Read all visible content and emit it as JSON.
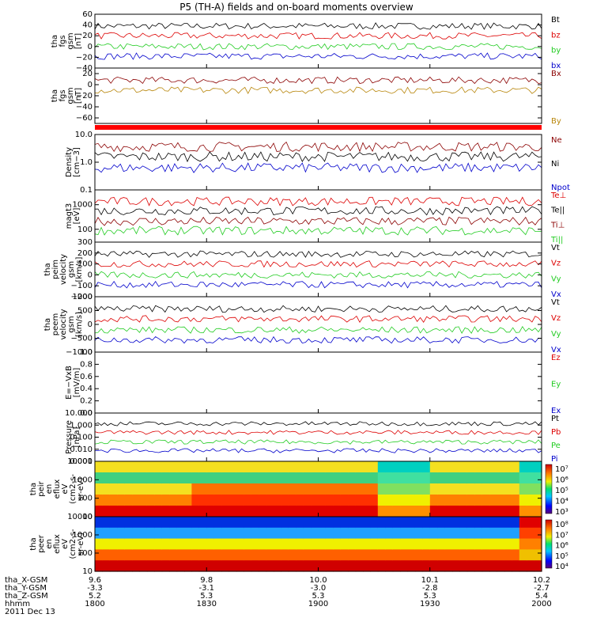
{
  "title": "P5 (TH-A) fields and on-board moments overview",
  "chart_data": {
    "type": "line",
    "title": "P5 (TH-A) fields and on-board moments overview",
    "x_axis": {
      "row_labels": [
        "tha_X-GSM",
        "tha_Y-GSM",
        "tha_Z-GSM",
        "hhmm",
        "2011 Dec 13"
      ],
      "ticks": [
        {
          "hhmm": "1800",
          "x_gsm": "9.6",
          "y_gsm": "-3.3",
          "z_gsm": "5.2"
        },
        {
          "hhmm": "1830",
          "x_gsm": "9.8",
          "y_gsm": "-3.1",
          "z_gsm": "5.3"
        },
        {
          "hhmm": "1900",
          "x_gsm": "10.0",
          "y_gsm": "-3.0",
          "z_gsm": "5.3"
        },
        {
          "hhmm": "1930",
          "x_gsm": "10.1",
          "y_gsm": "-2.8",
          "z_gsm": "5.3"
        },
        {
          "hhmm": "2000",
          "x_gsm": "10.2",
          "y_gsm": "-2.7",
          "z_gsm": "5.4"
        }
      ]
    },
    "panels": [
      {
        "id": "fgs",
        "ylabel": [
          "tha",
          "fgs",
          "gsm",
          "[nT]"
        ],
        "scale": "linear",
        "ylim": [
          -40,
          60
        ],
        "yticks": [
          "60",
          "40",
          "20",
          "0",
          "−20",
          "−40"
        ],
        "legend": [
          {
            "label": "Bt",
            "color": "#000000"
          },
          {
            "label": "bz",
            "color": "#dd0000"
          },
          {
            "label": "by",
            "color": "#22cc22"
          },
          {
            "label": "bx",
            "color": "#0000cc"
          }
        ]
      },
      {
        "id": "fgs_angles",
        "ylabel": [
          "tha",
          "fgs",
          "gsm",
          "[nT]"
        ],
        "scale": "linear",
        "ylim": [
          -70,
          30
        ],
        "yticks": [
          "20",
          "0",
          "−20",
          "−40",
          "−60"
        ],
        "legend": [
          {
            "label": "Bx",
            "color": "#8b0000"
          },
          {
            "label": "By",
            "color": "#b8860b"
          }
        ]
      },
      {
        "id": "density",
        "ylabel": [
          "Density",
          "[cm−3]"
        ],
        "scale": "log",
        "ylim": [
          0.1,
          10
        ],
        "yticks": [
          "10.0",
          "1.0",
          "0.1"
        ],
        "legend": [
          {
            "label": "Ne",
            "color": "#8b0000"
          },
          {
            "label": "Ni",
            "color": "#000000"
          },
          {
            "label": "Npot",
            "color": "#0000cc"
          }
        ]
      },
      {
        "id": "temperature",
        "ylabel": [
          "magt3",
          "[eV]"
        ],
        "scale": "log",
        "ylim": [
          30,
          4000
        ],
        "yticks": [
          "1000",
          "100"
        ],
        "legend": [
          {
            "label": "Te⊥",
            "color": "#dd0000"
          },
          {
            "label": "Te||",
            "color": "#000000"
          },
          {
            "label": "Ti⊥",
            "color": "#8b0000"
          },
          {
            "label": "Ti||",
            "color": "#22cc22"
          }
        ]
      },
      {
        "id": "ion_velocity",
        "ylabel": [
          "tha",
          "peim",
          "velocity",
          "gsm",
          "[km/s]"
        ],
        "scale": "linear",
        "ylim": [
          -200,
          300
        ],
        "yticks": [
          "300",
          "200",
          "100",
          "0",
          "−100",
          "−200"
        ],
        "legend": [
          {
            "label": "Vt",
            "color": "#000000"
          },
          {
            "label": "Vz",
            "color": "#dd0000"
          },
          {
            "label": "Vy",
            "color": "#22cc22"
          },
          {
            "label": "Vx",
            "color": "#0000cc"
          }
        ]
      },
      {
        "id": "electron_velocity",
        "ylabel": [
          "tha",
          "peem",
          "velocity",
          "gsm",
          "[km/s]"
        ],
        "scale": "linear",
        "ylim": [
          -1000,
          1000
        ],
        "yticks": [
          "1000",
          "500",
          "0",
          "−500",
          "−1000"
        ],
        "legend": [
          {
            "label": "Vt",
            "color": "#000000"
          },
          {
            "label": "Vz",
            "color": "#dd0000"
          },
          {
            "label": "Vy",
            "color": "#22cc22"
          },
          {
            "label": "Vx",
            "color": "#0000cc"
          }
        ]
      },
      {
        "id": "efield",
        "ylabel": [
          "E=−VxB",
          "[mV/m]"
        ],
        "scale": "linear",
        "ylim": [
          0,
          1
        ],
        "yticks": [
          "1.0",
          "0.8",
          "0.6",
          "0.4",
          "0.2",
          "0.0"
        ],
        "legend": [
          {
            "label": "Ez",
            "color": "#dd0000"
          },
          {
            "label": "Ey",
            "color": "#22cc22"
          },
          {
            "label": "Ex",
            "color": "#0000cc"
          }
        ]
      },
      {
        "id": "pressure",
        "ylabel": [
          "Pressure",
          "[nPa]"
        ],
        "scale": "log",
        "ylim": [
          0.001,
          10
        ],
        "yticks": [
          "10.000",
          "1.000",
          "0.100",
          "0.010",
          "0.001"
        ],
        "legend": [
          {
            "label": "Pt",
            "color": "#000000"
          },
          {
            "label": "Pb",
            "color": "#dd0000"
          },
          {
            "label": "Pe",
            "color": "#22cc22"
          },
          {
            "label": "Pi",
            "color": "#0000cc"
          }
        ]
      },
      {
        "id": "ion_spectrogram",
        "ylabel": [
          "tha",
          "peir",
          "en",
          "eflux",
          "eV",
          "(cm2-s-",
          "sr-eV)"
        ],
        "scale": "log",
        "ylim": [
          10,
          10000
        ],
        "yticks": [
          "10000",
          "1000",
          "100",
          "10"
        ],
        "colorbar": [
          "10⁷",
          "10⁶",
          "10⁵",
          "10⁴",
          "10³"
        ]
      },
      {
        "id": "electron_spectrogram",
        "ylabel": [
          "tha",
          "peer",
          "en",
          "eflux",
          "eV",
          "(cm2-s-",
          "sr-eV)"
        ],
        "scale": "log",
        "ylim": [
          10,
          10000
        ],
        "yticks": [
          "10000",
          "1000",
          "100",
          "10"
        ],
        "colorbar": [
          "10⁸",
          "10⁷",
          "10⁶",
          "10⁵",
          "10⁴"
        ]
      }
    ]
  }
}
